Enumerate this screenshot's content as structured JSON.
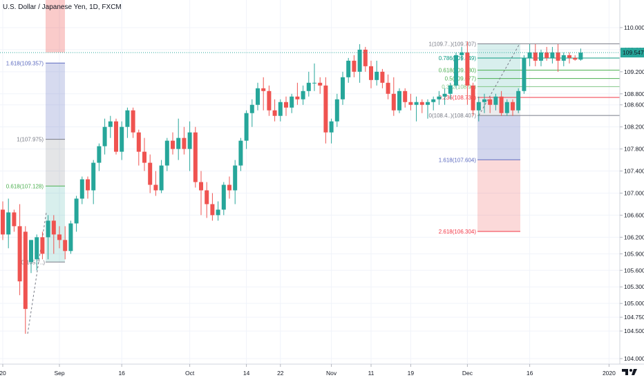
{
  "title": "U.S. Dollar / Japanese Yen, 1D, FXCM",
  "current_price_label": "109.547",
  "colors": {
    "up": "#26a69a",
    "down": "#ef5350",
    "fib_blue": "#5c6bc0",
    "fib_green": "#4caf50",
    "fib_red": "#f23645",
    "fib_gray": "#787b86",
    "price_line": "#26a69a"
  },
  "icons": {
    "logo": "tradingview-logo-icon"
  },
  "chart_data": {
    "type": "candlestick",
    "title": "U.S. Dollar / Japanese Yen, 1D, FXCM",
    "ylim": [
      103.9,
      110.25
    ],
    "y_ticks": [
      "110.000",
      "109.600",
      "109.200",
      "108.800",
      "108.600",
      "108.200",
      "107.800",
      "107.400",
      "107.000",
      "106.600",
      "106.200",
      "105.900",
      "105.600",
      "105.300",
      "105.000",
      "104.750",
      "104.500",
      "104.000"
    ],
    "y_tick_values": [
      110.0,
      109.6,
      109.2,
      108.8,
      108.6,
      108.2,
      107.8,
      107.4,
      107.0,
      106.6,
      106.2,
      105.9,
      105.6,
      105.3,
      105.0,
      104.75,
      104.5,
      104.0
    ],
    "x_ticks": [
      "20",
      "Sep",
      "16",
      "Oct",
      "14",
      "22",
      "Nov",
      "11",
      "19",
      "Dec",
      "16",
      "2020"
    ],
    "x_tick_slots": [
      0,
      10,
      21,
      33,
      43,
      49,
      58,
      65,
      72,
      82,
      93,
      107
    ],
    "last_price": 109.547,
    "candles": [
      {
        "o": 106.7,
        "h": 106.85,
        "l": 106.15,
        "c": 106.25
      },
      {
        "o": 106.25,
        "h": 106.9,
        "l": 106.0,
        "c": 106.65
      },
      {
        "o": 106.65,
        "h": 106.7,
        "l": 106.3,
        "c": 106.4
      },
      {
        "o": 106.4,
        "h": 106.8,
        "l": 105.15,
        "c": 105.4
      },
      {
        "o": 106.3,
        "h": 106.4,
        "l": 104.45,
        "c": 104.9
      },
      {
        "o": 105.75,
        "h": 106.15,
        "l": 105.55,
        "c": 106.15
      },
      {
        "o": 105.8,
        "h": 106.25,
        "l": 105.6,
        "c": 106.2
      },
      {
        "o": 106.2,
        "h": 106.3,
        "l": 105.8,
        "c": 105.9
      },
      {
        "o": 106.2,
        "h": 106.6,
        "l": 105.8,
        "c": 106.5
      },
      {
        "o": 106.5,
        "h": 106.6,
        "l": 105.9,
        "c": 106.25
      },
      {
        "o": 106.25,
        "h": 106.4,
        "l": 106.0,
        "c": 106.15
      },
      {
        "o": 106.15,
        "h": 106.4,
        "l": 105.8,
        "c": 105.95
      },
      {
        "o": 105.95,
        "h": 106.5,
        "l": 105.9,
        "c": 106.45
      },
      {
        "o": 106.45,
        "h": 106.95,
        "l": 106.3,
        "c": 106.9
      },
      {
        "o": 106.9,
        "h": 107.3,
        "l": 106.8,
        "c": 107.25
      },
      {
        "o": 107.25,
        "h": 107.3,
        "l": 106.9,
        "c": 107.05
      },
      {
        "o": 107.05,
        "h": 107.6,
        "l": 106.8,
        "c": 107.55
      },
      {
        "o": 107.55,
        "h": 107.9,
        "l": 107.4,
        "c": 107.85
      },
      {
        "o": 107.85,
        "h": 108.35,
        "l": 107.7,
        "c": 108.2
      },
      {
        "o": 108.2,
        "h": 108.4,
        "l": 108.0,
        "c": 108.3
      },
      {
        "o": 108.3,
        "h": 108.35,
        "l": 107.7,
        "c": 107.75
      },
      {
        "o": 107.75,
        "h": 108.3,
        "l": 107.6,
        "c": 108.2
      },
      {
        "o": 108.2,
        "h": 108.55,
        "l": 108.0,
        "c": 108.5
      },
      {
        "o": 108.5,
        "h": 108.55,
        "l": 108.0,
        "c": 108.1
      },
      {
        "o": 108.1,
        "h": 108.15,
        "l": 107.5,
        "c": 107.75
      },
      {
        "o": 107.75,
        "h": 108.0,
        "l": 107.4,
        "c": 107.55
      },
      {
        "o": 107.55,
        "h": 107.7,
        "l": 107.0,
        "c": 107.15
      },
      {
        "o": 107.15,
        "h": 107.4,
        "l": 106.95,
        "c": 107.05
      },
      {
        "o": 107.05,
        "h": 107.6,
        "l": 107.0,
        "c": 107.5
      },
      {
        "o": 107.5,
        "h": 108.0,
        "l": 107.4,
        "c": 107.95
      },
      {
        "o": 107.95,
        "h": 108.1,
        "l": 107.7,
        "c": 107.8
      },
      {
        "o": 107.8,
        "h": 108.35,
        "l": 107.6,
        "c": 108.0
      },
      {
        "o": 108.0,
        "h": 108.2,
        "l": 107.7,
        "c": 107.8
      },
      {
        "o": 107.8,
        "h": 108.3,
        "l": 107.4,
        "c": 108.1
      },
      {
        "o": 108.1,
        "h": 108.2,
        "l": 107.1,
        "c": 107.2
      },
      {
        "o": 107.2,
        "h": 107.4,
        "l": 106.6,
        "c": 107.05
      },
      {
        "o": 107.05,
        "h": 107.2,
        "l": 106.55,
        "c": 106.8
      },
      {
        "o": 106.8,
        "h": 107.0,
        "l": 106.5,
        "c": 106.6
      },
      {
        "o": 106.6,
        "h": 106.85,
        "l": 106.5,
        "c": 106.7
      },
      {
        "o": 106.7,
        "h": 107.2,
        "l": 106.6,
        "c": 107.15
      },
      {
        "o": 107.15,
        "h": 107.3,
        "l": 106.9,
        "c": 107.05
      },
      {
        "o": 107.05,
        "h": 107.6,
        "l": 106.8,
        "c": 107.5
      },
      {
        "o": 107.5,
        "h": 108.0,
        "l": 107.4,
        "c": 107.95
      },
      {
        "o": 107.95,
        "h": 108.5,
        "l": 107.8,
        "c": 108.45
      },
      {
        "o": 108.45,
        "h": 108.7,
        "l": 108.2,
        "c": 108.6
      },
      {
        "o": 108.6,
        "h": 109.0,
        "l": 108.5,
        "c": 108.9
      },
      {
        "o": 108.9,
        "h": 109.1,
        "l": 108.5,
        "c": 108.85
      },
      {
        "o": 108.85,
        "h": 108.95,
        "l": 108.4,
        "c": 108.5
      },
      {
        "o": 108.5,
        "h": 108.7,
        "l": 108.3,
        "c": 108.4
      },
      {
        "o": 108.4,
        "h": 108.7,
        "l": 108.3,
        "c": 108.65
      },
      {
        "o": 108.65,
        "h": 108.75,
        "l": 108.4,
        "c": 108.55
      },
      {
        "o": 108.55,
        "h": 108.8,
        "l": 108.45,
        "c": 108.75
      },
      {
        "o": 108.75,
        "h": 109.0,
        "l": 108.6,
        "c": 108.7
      },
      {
        "o": 108.7,
        "h": 108.95,
        "l": 108.6,
        "c": 108.85
      },
      {
        "o": 108.85,
        "h": 109.2,
        "l": 108.75,
        "c": 109.0
      },
      {
        "o": 109.0,
        "h": 109.35,
        "l": 108.85,
        "c": 109.0
      },
      {
        "o": 109.0,
        "h": 109.1,
        "l": 108.8,
        "c": 108.95
      },
      {
        "o": 108.95,
        "h": 109.1,
        "l": 107.9,
        "c": 108.1
      },
      {
        "o": 108.1,
        "h": 108.35,
        "l": 107.9,
        "c": 108.3
      },
      {
        "o": 108.3,
        "h": 108.8,
        "l": 108.2,
        "c": 108.7
      },
      {
        "o": 108.7,
        "h": 109.2,
        "l": 108.6,
        "c": 109.1
      },
      {
        "o": 109.1,
        "h": 109.45,
        "l": 109.0,
        "c": 109.4
      },
      {
        "o": 109.4,
        "h": 109.5,
        "l": 109.1,
        "c": 109.2
      },
      {
        "o": 109.2,
        "h": 109.7,
        "l": 109.0,
        "c": 109.6
      },
      {
        "o": 109.6,
        "h": 109.65,
        "l": 109.2,
        "c": 109.3
      },
      {
        "o": 109.3,
        "h": 109.4,
        "l": 108.9,
        "c": 109.05
      },
      {
        "o": 109.05,
        "h": 109.4,
        "l": 108.95,
        "c": 109.2
      },
      {
        "o": 109.2,
        "h": 109.25,
        "l": 108.9,
        "c": 109.0
      },
      {
        "o": 109.0,
        "h": 109.15,
        "l": 108.7,
        "c": 108.8
      },
      {
        "o": 108.8,
        "h": 109.1,
        "l": 108.4,
        "c": 108.5
      },
      {
        "o": 108.5,
        "h": 108.9,
        "l": 108.45,
        "c": 108.85
      },
      {
        "o": 108.85,
        "h": 108.9,
        "l": 108.55,
        "c": 108.65
      },
      {
        "o": 108.65,
        "h": 108.8,
        "l": 108.5,
        "c": 108.6
      },
      {
        "o": 108.6,
        "h": 108.75,
        "l": 108.3,
        "c": 108.65
      },
      {
        "o": 108.65,
        "h": 108.7,
        "l": 108.45,
        "c": 108.6
      },
      {
        "o": 108.6,
        "h": 108.7,
        "l": 108.35,
        "c": 108.65
      },
      {
        "o": 108.65,
        "h": 108.75,
        "l": 108.5,
        "c": 108.7
      },
      {
        "o": 108.7,
        "h": 108.85,
        "l": 108.6,
        "c": 108.75
      },
      {
        "o": 108.75,
        "h": 108.9,
        "l": 108.6,
        "c": 108.8
      },
      {
        "o": 108.8,
        "h": 109.0,
        "l": 108.7,
        "c": 108.95
      },
      {
        "o": 108.95,
        "h": 109.55,
        "l": 108.9,
        "c": 109.5
      },
      {
        "o": 109.5,
        "h": 109.65,
        "l": 109.4,
        "c": 109.55
      },
      {
        "o": 109.55,
        "h": 109.75,
        "l": 108.6,
        "c": 108.95
      },
      {
        "o": 108.95,
        "h": 109.0,
        "l": 108.4,
        "c": 108.5
      },
      {
        "o": 108.5,
        "h": 108.75,
        "l": 108.3,
        "c": 108.65
      },
      {
        "o": 108.65,
        "h": 108.8,
        "l": 108.45,
        "c": 108.7
      },
      {
        "o": 108.7,
        "h": 108.75,
        "l": 108.45,
        "c": 108.6
      },
      {
        "o": 108.6,
        "h": 108.8,
        "l": 108.5,
        "c": 108.75
      },
      {
        "o": 108.75,
        "h": 108.85,
        "l": 108.4,
        "c": 108.45
      },
      {
        "o": 108.45,
        "h": 108.7,
        "l": 108.4,
        "c": 108.65
      },
      {
        "o": 108.65,
        "h": 108.7,
        "l": 108.4,
        "c": 108.5
      },
      {
        "o": 108.5,
        "h": 108.9,
        "l": 108.45,
        "c": 108.85
      },
      {
        "o": 108.85,
        "h": 109.5,
        "l": 108.8,
        "c": 109.45
      },
      {
        "o": 109.45,
        "h": 109.7,
        "l": 109.3,
        "c": 109.55
      },
      {
        "o": 109.55,
        "h": 109.7,
        "l": 109.3,
        "c": 109.4
      },
      {
        "o": 109.4,
        "h": 109.6,
        "l": 109.3,
        "c": 109.55
      },
      {
        "o": 109.55,
        "h": 109.65,
        "l": 109.4,
        "c": 109.45
      },
      {
        "o": 109.45,
        "h": 109.65,
        "l": 109.35,
        "c": 109.55
      },
      {
        "o": 109.55,
        "h": 109.7,
        "l": 109.2,
        "c": 109.4
      },
      {
        "o": 109.4,
        "h": 109.55,
        "l": 109.3,
        "c": 109.5
      },
      {
        "o": 109.5,
        "h": 109.55,
        "l": 109.35,
        "c": 109.45
      },
      {
        "o": 109.45,
        "h": 109.5,
        "l": 109.4,
        "c": 109.42
      },
      {
        "o": 109.42,
        "h": 109.62,
        "l": 109.4,
        "c": 109.547
      }
    ],
    "fib_left": {
      "levels": [
        {
          "label": "1.618(109.357)",
          "value": 109.357,
          "color": "#5c6bc0"
        },
        {
          "label": "1(107.975)",
          "value": 107.975,
          "color": "#787b86"
        },
        {
          "label": "0.618(107.128)",
          "value": 107.128,
          "color": "#4caf50"
        }
      ],
      "partial_label": "0(105.7..)"
    },
    "fib_right": {
      "levels": [
        {
          "label": "1(109.7..)(109.707)",
          "value": 109.707,
          "color": "#787b86"
        },
        {
          "label": "0.786(109.449)",
          "value": 109.449,
          "color": "#089981"
        },
        {
          "label": "0.618(109.230)",
          "value": 109.23,
          "color": "#4caf50"
        },
        {
          "label": "0.5(109.077)",
          "value": 109.077,
          "color": "#4caf50"
        },
        {
          "label": "0.382(108.9..)",
          "value": 108.93,
          "color": "#81c784"
        },
        {
          "label": "0.236(108.734)",
          "value": 108.734,
          "color": "#f23645"
        },
        {
          "label": "0(108.4..)(108.407)",
          "value": 108.407,
          "color": "#787b86"
        },
        {
          "label": "1.618(107.604)",
          "value": 107.604,
          "color": "#5c6bc0"
        },
        {
          "label": "2.618(106.304)",
          "value": 106.304,
          "color": "#f23645"
        }
      ]
    }
  }
}
